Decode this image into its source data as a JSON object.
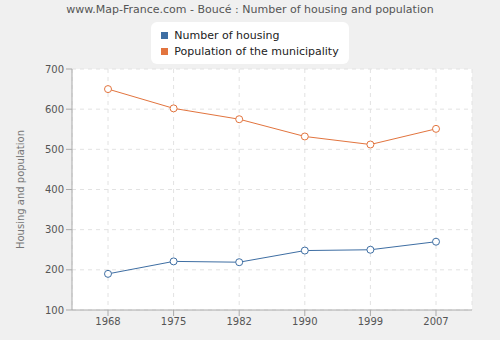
{
  "chart_data": {
    "type": "line",
    "title": "www.Map-France.com - Boucé : Number of housing and population",
    "categories": [
      "1968",
      "1975",
      "1982",
      "1990",
      "1999",
      "2007"
    ],
    "series": [
      {
        "name": "Number of housing",
        "color": "#3e6ea3",
        "values": [
          190,
          221,
          219,
          248,
          250,
          270
        ]
      },
      {
        "name": "Population of the municipality",
        "color": "#e2743e",
        "values": [
          650,
          602,
          575,
          532,
          512,
          551
        ]
      }
    ],
    "y_label": "Housing and population",
    "ylim": [
      100,
      700
    ],
    "yticks": [
      100,
      200,
      300,
      400,
      500,
      600,
      700
    ],
    "grid": true,
    "legend": "top",
    "marker": "circle"
  }
}
